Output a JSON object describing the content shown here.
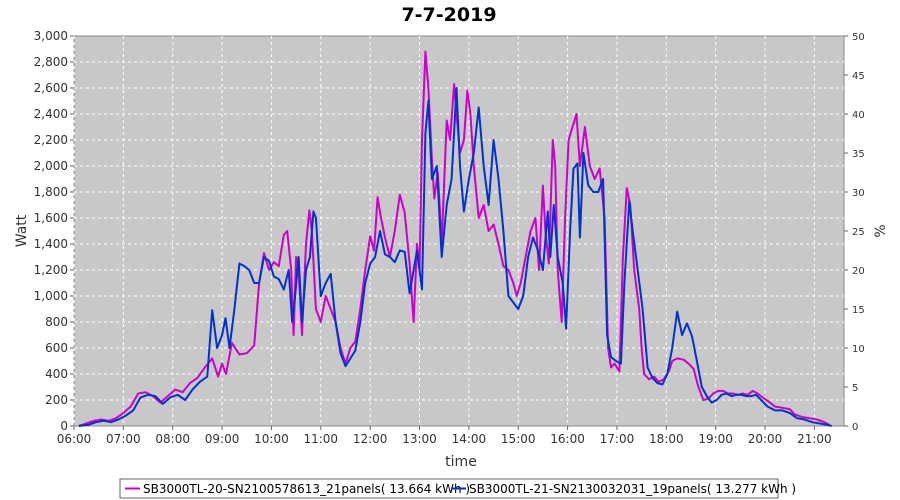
{
  "chart_data": {
    "type": "line",
    "title": "7-7-2019",
    "xlabel": "time",
    "ylabel": "Watt",
    "y2label": "%",
    "xlim": [
      6.0,
      21.6
    ],
    "ylim": [
      0,
      3000
    ],
    "y2lim": [
      0,
      50
    ],
    "x_ticks": [
      "06:00",
      "07:00",
      "08:00",
      "09:00",
      "10:00",
      "11:00",
      "12:00",
      "13:00",
      "14:00",
      "15:00",
      "16:00",
      "17:00",
      "18:00",
      "19:00",
      "20:00",
      "21:00"
    ],
    "y_ticks": [
      "0",
      "200",
      "400",
      "600",
      "800",
      "1,000",
      "1,200",
      "1,400",
      "1,600",
      "1,800",
      "2,000",
      "2,200",
      "2,400",
      "2,600",
      "2,800",
      "3,000"
    ],
    "y2_ticks": [
      "0",
      "5",
      "10",
      "15",
      "20",
      "25",
      "30",
      "35",
      "40",
      "45",
      "50"
    ],
    "grid": true,
    "legend_position": "bottom",
    "series": [
      {
        "name": "SB3000TL-20-SN2100578613_21panels( 13.664 kWh )",
        "color": "#cc00cc",
        "points": [
          [
            6.1,
            0
          ],
          [
            6.25,
            20
          ],
          [
            6.4,
            40
          ],
          [
            6.55,
            50
          ],
          [
            6.7,
            40
          ],
          [
            6.85,
            60
          ],
          [
            7.0,
            100
          ],
          [
            7.15,
            150
          ],
          [
            7.3,
            250
          ],
          [
            7.45,
            260
          ],
          [
            7.6,
            230
          ],
          [
            7.75,
            180
          ],
          [
            7.9,
            230
          ],
          [
            8.05,
            280
          ],
          [
            8.2,
            260
          ],
          [
            8.35,
            330
          ],
          [
            8.5,
            370
          ],
          [
            8.65,
            450
          ],
          [
            8.8,
            520
          ],
          [
            8.92,
            380
          ],
          [
            9.0,
            480
          ],
          [
            9.08,
            400
          ],
          [
            9.2,
            640
          ],
          [
            9.35,
            550
          ],
          [
            9.5,
            560
          ],
          [
            9.65,
            620
          ],
          [
            9.75,
            1100
          ],
          [
            9.85,
            1330
          ],
          [
            9.95,
            1200
          ],
          [
            10.05,
            1260
          ],
          [
            10.15,
            1230
          ],
          [
            10.25,
            1470
          ],
          [
            10.32,
            1500
          ],
          [
            10.4,
            1200
          ],
          [
            10.45,
            700
          ],
          [
            10.5,
            1300
          ],
          [
            10.55,
            1200
          ],
          [
            10.62,
            700
          ],
          [
            10.7,
            1400
          ],
          [
            10.77,
            1660
          ],
          [
            10.82,
            1500
          ],
          [
            10.9,
            900
          ],
          [
            11.0,
            800
          ],
          [
            11.1,
            1000
          ],
          [
            11.2,
            900
          ],
          [
            11.3,
            800
          ],
          [
            11.4,
            600
          ],
          [
            11.5,
            480
          ],
          [
            11.6,
            600
          ],
          [
            11.7,
            650
          ],
          [
            11.8,
            900
          ],
          [
            11.9,
            1200
          ],
          [
            12.0,
            1460
          ],
          [
            12.08,
            1350
          ],
          [
            12.15,
            1760
          ],
          [
            12.22,
            1600
          ],
          [
            12.3,
            1450
          ],
          [
            12.4,
            1300
          ],
          [
            12.5,
            1500
          ],
          [
            12.6,
            1780
          ],
          [
            12.7,
            1640
          ],
          [
            12.8,
            1250
          ],
          [
            12.88,
            800
          ],
          [
            12.95,
            1400
          ],
          [
            13.0,
            1200
          ],
          [
            13.05,
            2200
          ],
          [
            13.12,
            2880
          ],
          [
            13.18,
            2600
          ],
          [
            13.25,
            2050
          ],
          [
            13.3,
            1750
          ],
          [
            13.37,
            1950
          ],
          [
            13.45,
            1400
          ],
          [
            13.55,
            2350
          ],
          [
            13.62,
            2200
          ],
          [
            13.7,
            2630
          ],
          [
            13.75,
            2400
          ],
          [
            13.82,
            2100
          ],
          [
            13.9,
            2200
          ],
          [
            13.97,
            2580
          ],
          [
            14.03,
            2400
          ],
          [
            14.1,
            2000
          ],
          [
            14.2,
            1600
          ],
          [
            14.3,
            1700
          ],
          [
            14.4,
            1500
          ],
          [
            14.5,
            1550
          ],
          [
            14.6,
            1400
          ],
          [
            14.7,
            1230
          ],
          [
            14.8,
            1200
          ],
          [
            14.9,
            1100
          ],
          [
            14.97,
            1000
          ],
          [
            15.05,
            1100
          ],
          [
            15.15,
            1300
          ],
          [
            15.25,
            1500
          ],
          [
            15.35,
            1600
          ],
          [
            15.42,
            1200
          ],
          [
            15.5,
            1850
          ],
          [
            15.55,
            1500
          ],
          [
            15.62,
            1250
          ],
          [
            15.7,
            2200
          ],
          [
            15.75,
            2000
          ],
          [
            15.8,
            1200
          ],
          [
            15.88,
            800
          ],
          [
            15.95,
            1600
          ],
          [
            16.02,
            2200
          ],
          [
            16.1,
            2300
          ],
          [
            16.18,
            2400
          ],
          [
            16.25,
            2000
          ],
          [
            16.35,
            2300
          ],
          [
            16.45,
            2000
          ],
          [
            16.55,
            1900
          ],
          [
            16.65,
            1980
          ],
          [
            16.75,
            1600
          ],
          [
            16.82,
            600
          ],
          [
            16.88,
            450
          ],
          [
            16.95,
            480
          ],
          [
            17.05,
            420
          ],
          [
            17.12,
            1300
          ],
          [
            17.2,
            1830
          ],
          [
            17.27,
            1700
          ],
          [
            17.35,
            1200
          ],
          [
            17.45,
            900
          ],
          [
            17.5,
            600
          ],
          [
            17.55,
            400
          ],
          [
            17.65,
            360
          ],
          [
            17.75,
            380
          ],
          [
            17.85,
            340
          ],
          [
            17.95,
            360
          ],
          [
            18.05,
            420
          ],
          [
            18.12,
            500
          ],
          [
            18.22,
            520
          ],
          [
            18.35,
            510
          ],
          [
            18.45,
            480
          ],
          [
            18.55,
            440
          ],
          [
            18.65,
            300
          ],
          [
            18.75,
            200
          ],
          [
            18.85,
            210
          ],
          [
            18.95,
            250
          ],
          [
            19.05,
            270
          ],
          [
            19.15,
            270
          ],
          [
            19.25,
            250
          ],
          [
            19.35,
            250
          ],
          [
            19.45,
            240
          ],
          [
            19.55,
            250
          ],
          [
            19.65,
            240
          ],
          [
            19.75,
            270
          ],
          [
            19.85,
            250
          ],
          [
            19.95,
            220
          ],
          [
            20.1,
            180
          ],
          [
            20.2,
            150
          ],
          [
            20.35,
            140
          ],
          [
            20.5,
            130
          ],
          [
            20.6,
            90
          ],
          [
            20.75,
            70
          ],
          [
            20.9,
            60
          ],
          [
            21.05,
            50
          ],
          [
            21.2,
            30
          ],
          [
            21.3,
            10
          ]
        ]
      },
      {
        "name": "SB3000TL-21-SN2130032031_19panels( 13.277 kWh )",
        "color": "#0033cc",
        "points": [
          [
            6.1,
            0
          ],
          [
            6.3,
            10
          ],
          [
            6.45,
            30
          ],
          [
            6.6,
            40
          ],
          [
            6.75,
            30
          ],
          [
            6.9,
            50
          ],
          [
            7.05,
            80
          ],
          [
            7.2,
            120
          ],
          [
            7.35,
            220
          ],
          [
            7.5,
            240
          ],
          [
            7.65,
            230
          ],
          [
            7.8,
            170
          ],
          [
            7.95,
            220
          ],
          [
            8.1,
            240
          ],
          [
            8.25,
            200
          ],
          [
            8.4,
            280
          ],
          [
            8.55,
            340
          ],
          [
            8.7,
            380
          ],
          [
            8.8,
            890
          ],
          [
            8.9,
            600
          ],
          [
            9.0,
            700
          ],
          [
            9.07,
            830
          ],
          [
            9.15,
            600
          ],
          [
            9.25,
            900
          ],
          [
            9.35,
            1250
          ],
          [
            9.45,
            1230
          ],
          [
            9.55,
            1200
          ],
          [
            9.65,
            1100
          ],
          [
            9.75,
            1100
          ],
          [
            9.85,
            1300
          ],
          [
            9.95,
            1270
          ],
          [
            10.05,
            1150
          ],
          [
            10.15,
            1130
          ],
          [
            10.25,
            1050
          ],
          [
            10.35,
            1200
          ],
          [
            10.42,
            800
          ],
          [
            10.48,
            1000
          ],
          [
            10.55,
            1300
          ],
          [
            10.62,
            800
          ],
          [
            10.7,
            1200
          ],
          [
            10.78,
            1300
          ],
          [
            10.85,
            1650
          ],
          [
            10.9,
            1600
          ],
          [
            11.0,
            1000
          ],
          [
            11.1,
            1100
          ],
          [
            11.2,
            1170
          ],
          [
            11.3,
            800
          ],
          [
            11.4,
            560
          ],
          [
            11.5,
            460
          ],
          [
            11.6,
            520
          ],
          [
            11.7,
            580
          ],
          [
            11.8,
            800
          ],
          [
            11.9,
            1100
          ],
          [
            12.0,
            1250
          ],
          [
            12.1,
            1300
          ],
          [
            12.2,
            1500
          ],
          [
            12.3,
            1320
          ],
          [
            12.4,
            1300
          ],
          [
            12.5,
            1260
          ],
          [
            12.6,
            1350
          ],
          [
            12.7,
            1340
          ],
          [
            12.8,
            1020
          ],
          [
            12.88,
            1200
          ],
          [
            12.95,
            1350
          ],
          [
            13.05,
            1050
          ],
          [
            13.12,
            2250
          ],
          [
            13.18,
            2500
          ],
          [
            13.25,
            1900
          ],
          [
            13.35,
            2000
          ],
          [
            13.45,
            1300
          ],
          [
            13.55,
            1700
          ],
          [
            13.65,
            1900
          ],
          [
            13.75,
            2600
          ],
          [
            13.82,
            2000
          ],
          [
            13.9,
            1650
          ],
          [
            14.0,
            1900
          ],
          [
            14.1,
            2100
          ],
          [
            14.2,
            2450
          ],
          [
            14.3,
            2000
          ],
          [
            14.4,
            1700
          ],
          [
            14.5,
            2200
          ],
          [
            14.6,
            1900
          ],
          [
            14.7,
            1500
          ],
          [
            14.8,
            1000
          ],
          [
            14.9,
            950
          ],
          [
            15.0,
            900
          ],
          [
            15.1,
            1000
          ],
          [
            15.2,
            1300
          ],
          [
            15.3,
            1450
          ],
          [
            15.4,
            1350
          ],
          [
            15.5,
            1200
          ],
          [
            15.6,
            1650
          ],
          [
            15.65,
            1300
          ],
          [
            15.72,
            1700
          ],
          [
            15.8,
            1300
          ],
          [
            15.9,
            1100
          ],
          [
            15.97,
            750
          ],
          [
            16.05,
            1500
          ],
          [
            16.12,
            1980
          ],
          [
            16.2,
            2020
          ],
          [
            16.25,
            1450
          ],
          [
            16.32,
            2100
          ],
          [
            16.42,
            1850
          ],
          [
            16.52,
            1800
          ],
          [
            16.62,
            1800
          ],
          [
            16.72,
            1900
          ],
          [
            16.8,
            700
          ],
          [
            16.88,
            530
          ],
          [
            16.98,
            500
          ],
          [
            17.08,
            480
          ],
          [
            17.15,
            1100
          ],
          [
            17.25,
            1730
          ],
          [
            17.32,
            1500
          ],
          [
            17.42,
            1200
          ],
          [
            17.52,
            900
          ],
          [
            17.62,
            450
          ],
          [
            17.72,
            370
          ],
          [
            17.82,
            330
          ],
          [
            17.92,
            320
          ],
          [
            18.02,
            400
          ],
          [
            18.12,
            600
          ],
          [
            18.22,
            880
          ],
          [
            18.32,
            700
          ],
          [
            18.42,
            790
          ],
          [
            18.52,
            690
          ],
          [
            18.62,
            500
          ],
          [
            18.72,
            300
          ],
          [
            18.82,
            230
          ],
          [
            18.92,
            180
          ],
          [
            19.02,
            200
          ],
          [
            19.12,
            240
          ],
          [
            19.22,
            250
          ],
          [
            19.32,
            230
          ],
          [
            19.42,
            240
          ],
          [
            19.52,
            240
          ],
          [
            19.62,
            230
          ],
          [
            19.72,
            230
          ],
          [
            19.82,
            240
          ],
          [
            19.92,
            200
          ],
          [
            20.05,
            150
          ],
          [
            20.2,
            120
          ],
          [
            20.35,
            120
          ],
          [
            20.5,
            100
          ],
          [
            20.65,
            60
          ],
          [
            20.8,
            50
          ],
          [
            20.95,
            30
          ],
          [
            21.1,
            20
          ],
          [
            21.25,
            10
          ],
          [
            21.35,
            0
          ]
        ]
      }
    ]
  }
}
